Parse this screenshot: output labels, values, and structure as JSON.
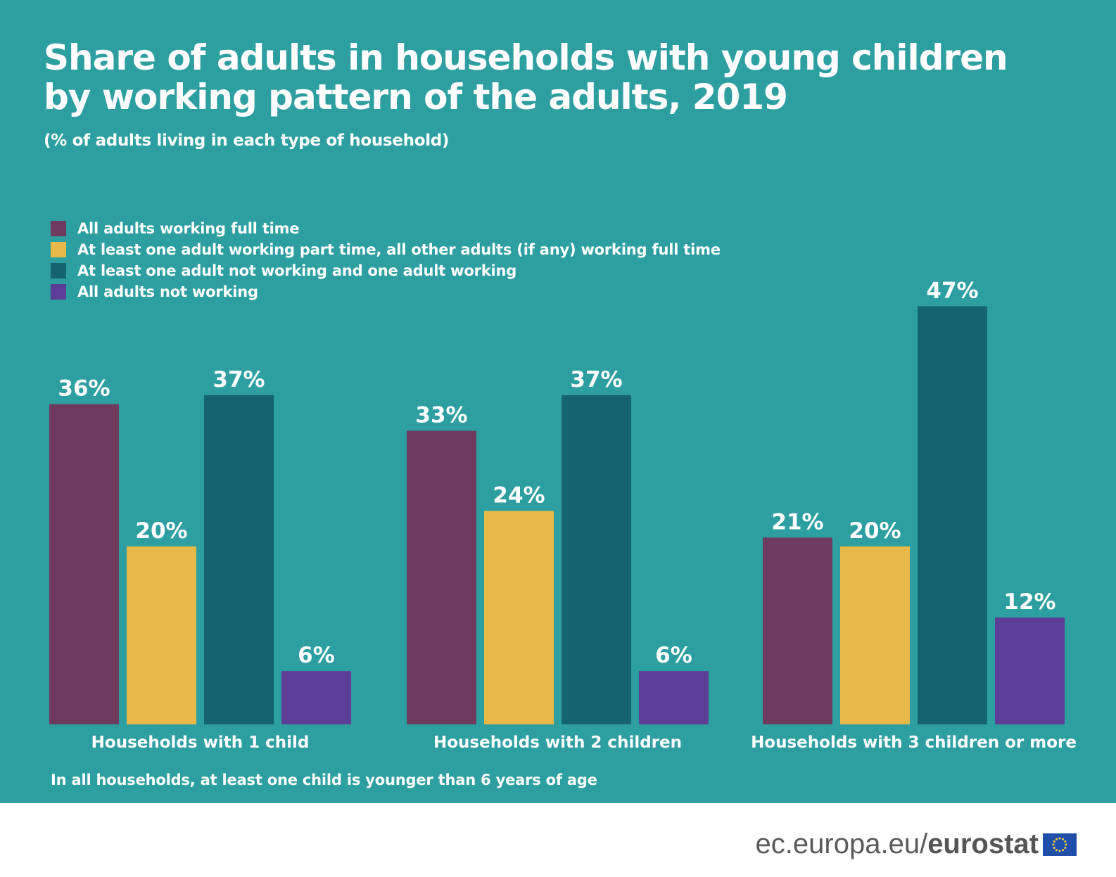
{
  "title_lines": [
    "Share of adults in households with young children",
    "by working pattern of the adults, 2019"
  ],
  "subtitle": "(% of adults living in each type of household)",
  "footnote": "In all households, at least one child is younger than 6 years of age",
  "brand": {
    "domain": "ec.europa.eu/",
    "name": "eurostat"
  },
  "colors": {
    "background": "#2e9fa0",
    "full_time": "#6e3a5e",
    "part_time": "#e6b948",
    "not_working_one": "#15636f",
    "not_working_all": "#5c3d97",
    "text": "#ffffff"
  },
  "chart_data": {
    "type": "bar",
    "categories": [
      "Households with 1 child",
      "Households with 2 children",
      "Households with 3 children or more"
    ],
    "series": [
      {
        "name": "All adults working full time",
        "color": "#6e3a5e",
        "values": [
          36,
          33,
          21
        ],
        "labels": [
          "36%",
          "33%",
          "21%"
        ]
      },
      {
        "name": "At least one adult working part time, all other adults (if any) working full time",
        "color": "#e6b948",
        "values": [
          20,
          24,
          20
        ],
        "labels": [
          "20%",
          "24%",
          "20%"
        ]
      },
      {
        "name": "At least one adult not working and one adult working",
        "color": "#15636f",
        "values": [
          37,
          37,
          47
        ],
        "labels": [
          "37%",
          "37%",
          "47%"
        ]
      },
      {
        "name": "All adults not working",
        "color": "#5c3d97",
        "values": [
          6,
          6,
          12
        ],
        "labels": [
          "6%",
          "6%",
          "12%"
        ]
      }
    ],
    "unit": "%",
    "ylim": [
      0,
      47
    ],
    "legend_position": "top-left",
    "grid": false
  }
}
